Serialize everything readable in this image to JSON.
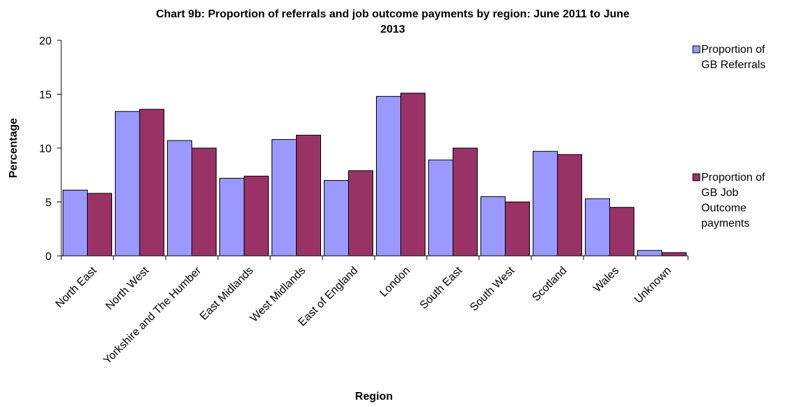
{
  "chart_data": {
    "type": "bar",
    "title_line1": "Chart 9b: Proportion of referrals and job outcome payments by region: June 2011 to June",
    "title_line2": "2013",
    "xlabel": "Region",
    "ylabel": "Percentage",
    "ylim": [
      0,
      20
    ],
    "yticks": [
      "0",
      "5",
      "10",
      "15",
      "20"
    ],
    "categories": [
      "North East",
      "North West",
      "Yorkshire and The Humber",
      "East Midlands",
      "West Midlands",
      "East of England",
      "London",
      "South East",
      "South West",
      "Scotland",
      "Wales",
      "Unknown"
    ],
    "series": [
      {
        "name": "Proportion of GB Referrals",
        "legend_lines": [
          "Proportion of",
          "GB Referrals"
        ],
        "color": "#9999ff",
        "values": [
          6.1,
          13.4,
          10.7,
          7.2,
          10.8,
          7.0,
          14.8,
          8.9,
          5.5,
          9.7,
          5.3,
          0.5
        ]
      },
      {
        "name": "Proportion of GB Job Outcome payments",
        "legend_lines": [
          "Proportion of",
          "GB Job",
          "Outcome",
          "payments"
        ],
        "color": "#993366",
        "values": [
          5.8,
          13.6,
          10.0,
          7.4,
          11.2,
          7.9,
          15.1,
          10.0,
          5.0,
          9.4,
          4.5,
          0.3
        ]
      }
    ],
    "grid": false,
    "legend_position": "right"
  }
}
